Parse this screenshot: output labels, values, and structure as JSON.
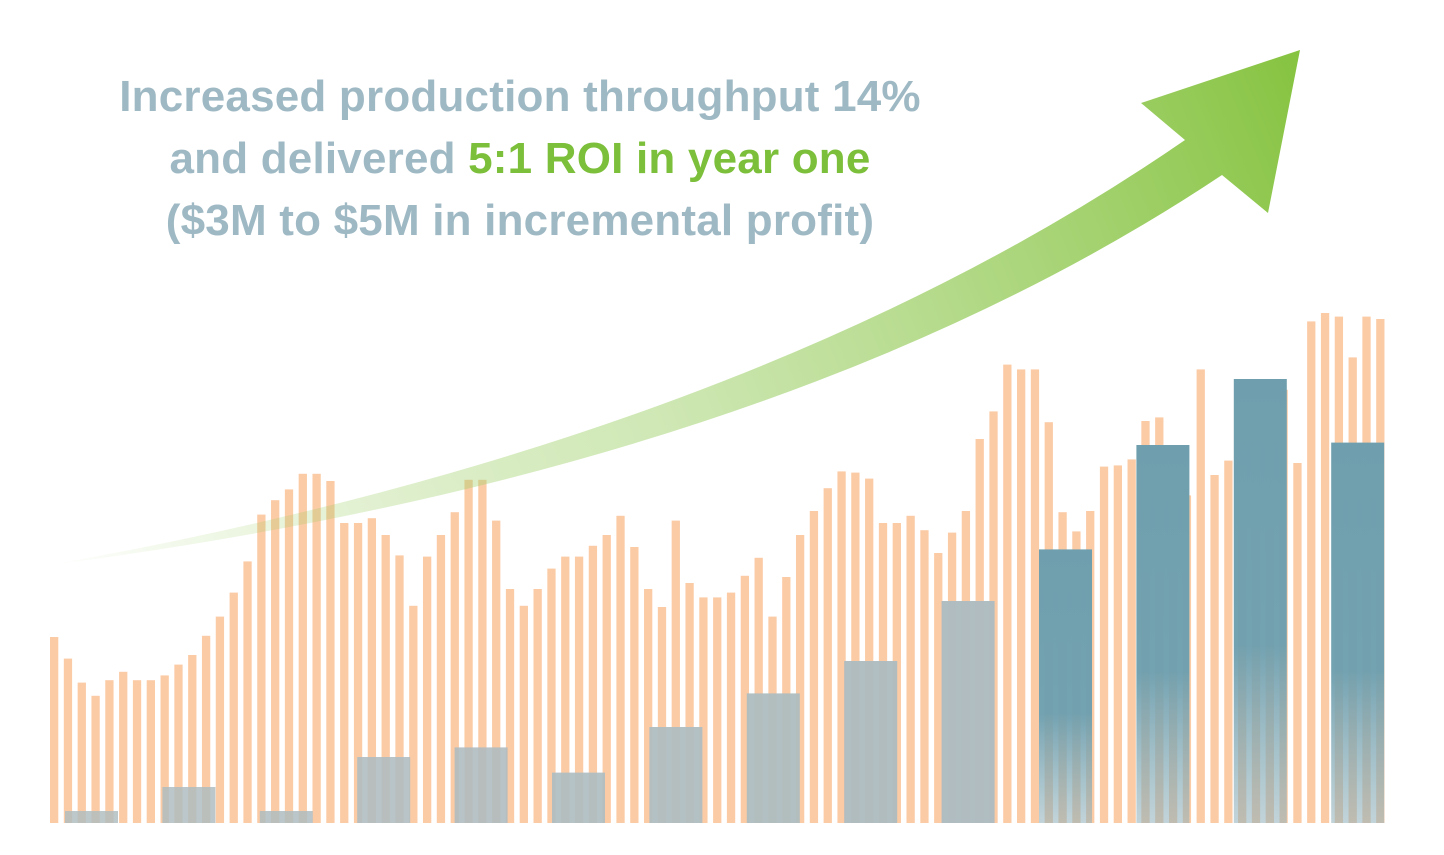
{
  "headline": {
    "line1": "Increased production throughput 14%",
    "line2_prefix": "and delivered ",
    "line2_highlight": "5:1 ROI in year one",
    "line3": "($3M to $5M in incremental profit)"
  },
  "colors": {
    "background": "#ffffff",
    "headline_text": "#9fb9c4",
    "headline_accent": "#7cbf3a",
    "thin_bars": "#fbcba6",
    "thick_bars": "#6f9fae",
    "thick_bars_faded": "#aebcc0",
    "arrow": "#86c340"
  },
  "chart_data": [
    {
      "type": "bar",
      "series": [
        {
          "values": [
            155,
            137,
            117,
            106,
            119,
            126,
            119,
            119,
            123,
            132,
            140,
            156,
            172,
            192,
            218,
            257,
            269,
            278,
            291,
            291,
            285,
            250,
            250,
            254,
            240,
            223,
            181,
            222,
            240,
            259,
            286,
            286,
            252,
            195,
            181,
            195,
            212,
            222,
            222,
            231,
            240,
            256,
            230,
            195,
            180,
            252,
            200,
            188,
            188,
            192,
            206,
            221,
            172,
            205,
            240,
            260,
            279,
            293,
            292,
            287,
            250,
            250,
            256,
            244,
            225,
            242,
            260,
            320,
            343,
            382,
            378,
            378,
            334,
            259,
            243,
            260,
            297,
            298,
            303,
            335,
            338,
            305,
            273,
            378,
            290,
            302,
            298,
            314,
            337,
            361,
            300,
            418,
            425,
            422,
            388,
            422,
            420
          ]
        },
        {
          "values": [
            10,
            30,
            10,
            55,
            63,
            42,
            80,
            108,
            135,
            185,
            228,
            315,
            370,
            317
          ]
        }
      ],
      "annotation": "upward-trend-arrow",
      "grid": false,
      "legend": "none"
    }
  ]
}
